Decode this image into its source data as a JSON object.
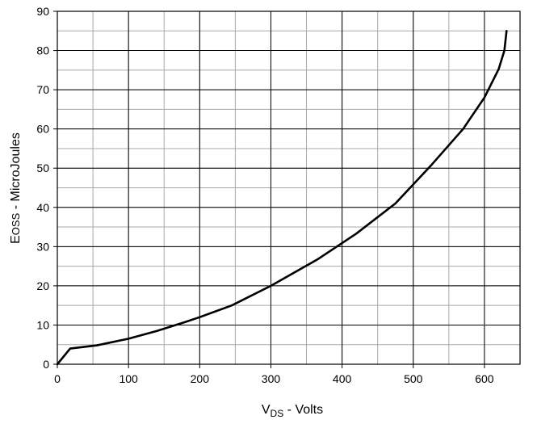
{
  "chart_data": {
    "type": "line",
    "title": "",
    "xlabel": {
      "main": "V",
      "sub": "DS",
      "rest": " - Volts"
    },
    "ylabel": {
      "main": "E",
      "sub": "OSS",
      "rest": " - MicroJoules"
    },
    "xlim": [
      0,
      650
    ],
    "ylim": [
      0,
      90
    ],
    "xticks": [
      0,
      100,
      200,
      300,
      400,
      500,
      600
    ],
    "yticks": [
      0,
      10,
      20,
      30,
      40,
      50,
      60,
      70,
      80,
      90
    ],
    "x_minor_step": 50,
    "y_minor_step": 5,
    "grid": true,
    "series": [
      {
        "color": "#000000",
        "x": [
          0,
          18,
          55,
          100,
          140,
          180,
          200,
          245,
          300,
          365,
          420,
          475,
          525,
          570,
          600,
          620,
          628,
          631
        ],
        "y": [
          0,
          4,
          4.8,
          6.5,
          8.5,
          10.8,
          12,
          15,
          20,
          26.7,
          33.3,
          41,
          50.7,
          60,
          68,
          75.3,
          80,
          85
        ]
      }
    ]
  }
}
